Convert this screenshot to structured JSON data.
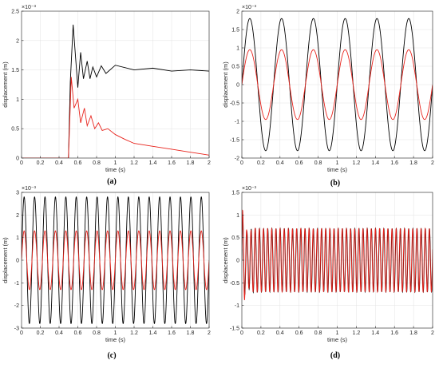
{
  "chart_data": [
    {
      "panel": "(a)",
      "type": "line",
      "xlabel": "time (s)",
      "ylabel": "displacement (m)",
      "exponent_label": "×10⁻³",
      "xlim": [
        0,
        2
      ],
      "ylim": [
        0,
        2.5
      ],
      "xticks": [
        "0",
        "0.2",
        "0.4",
        "0.6",
        "0.8",
        "1",
        "1.2",
        "1.4",
        "1.6",
        "1.8",
        "2"
      ],
      "yticks": [
        "0",
        "0.5",
        "1",
        "1.5",
        "2",
        "2.5"
      ],
      "grid": true,
      "series": [
        {
          "color": "#000000",
          "x": [
            0,
            0.5,
            0.52,
            0.55,
            0.6,
            0.63,
            0.66,
            0.7,
            0.73,
            0.76,
            0.8,
            0.85,
            0.9,
            1.0,
            1.2,
            1.4,
            1.6,
            1.8,
            2.0
          ],
          "y": [
            0,
            0,
            1.3,
            2.27,
            1.2,
            1.8,
            1.35,
            1.65,
            1.35,
            1.55,
            1.38,
            1.57,
            1.44,
            1.58,
            1.5,
            1.53,
            1.48,
            1.5,
            1.48
          ]
        },
        {
          "color": "#e8231c",
          "x": [
            0,
            0.5,
            0.53,
            0.56,
            0.6,
            0.63,
            0.67,
            0.7,
            0.74,
            0.78,
            0.82,
            0.86,
            0.92,
            1.0,
            1.1,
            1.2,
            1.4,
            1.6,
            1.8,
            2.0
          ],
          "y": [
            0,
            0,
            1.38,
            0.85,
            1.0,
            0.6,
            0.85,
            0.55,
            0.72,
            0.5,
            0.6,
            0.47,
            0.5,
            0.4,
            0.32,
            0.25,
            0.2,
            0.15,
            0.1,
            0.05
          ]
        }
      ]
    },
    {
      "panel": "(b)",
      "type": "line",
      "xlabel": "time (s)",
      "ylabel": "displacement (m)",
      "exponent_label": "×10⁻³",
      "xlim": [
        0,
        2
      ],
      "ylim": [
        -2,
        2
      ],
      "xticks": [
        "0",
        "0.2",
        "0.4",
        "0.6",
        "0.8",
        "1",
        "1.2",
        "1.4",
        "1.6",
        "1.8",
        "2"
      ],
      "yticks": [
        "-2",
        "-1.5",
        "-1",
        "-0.5",
        "0",
        "0.5",
        "1",
        "1.5",
        "2"
      ],
      "grid": true,
      "series": [
        {
          "color": "#000000",
          "amplitude": 1.8,
          "frequency_hz": 3.0,
          "phase": 0,
          "decay": 0
        },
        {
          "color": "#e8231c",
          "amplitude": 0.95,
          "frequency_hz": 3.0,
          "phase": 0,
          "decay": 0
        }
      ]
    },
    {
      "panel": "(c)",
      "type": "line",
      "xlabel": "time (s)",
      "ylabel": "displacement (m)",
      "exponent_label": "×10⁻³",
      "xlim": [
        0,
        2
      ],
      "ylim": [
        -3,
        3
      ],
      "xticks": [
        "0",
        "0.2",
        "0.4",
        "0.6",
        "0.8",
        "1",
        "1.2",
        "1.4",
        "1.6",
        "1.8",
        "2"
      ],
      "yticks": [
        "-3",
        "-2",
        "-1",
        "0",
        "1",
        "2",
        "3"
      ],
      "grid": true,
      "series": [
        {
          "color": "#000000",
          "amplitude": 2.8,
          "frequency_hz": 9.0,
          "phase": 0,
          "decay": 0
        },
        {
          "color": "#e8231c",
          "amplitude": 1.3,
          "frequency_hz": 9.0,
          "phase": 0,
          "decay": 0
        }
      ]
    },
    {
      "panel": "(d)",
      "type": "line",
      "xlabel": "time (s)",
      "ylabel": "displacement (m)",
      "exponent_label": "×10⁻³",
      "xlim": [
        0,
        2
      ],
      "ylim": [
        -1.5,
        1.5
      ],
      "xticks": [
        "0",
        "0.2",
        "0.4",
        "0.6",
        "0.8",
        "1",
        "1.2",
        "1.4",
        "1.6",
        "1.8",
        "2"
      ],
      "yticks": [
        "-1.5",
        "-1",
        "-0.5",
        "0",
        "0.5",
        "1",
        "1.5"
      ],
      "grid": true,
      "series": [
        {
          "color": "#000000",
          "amplitude": 0.7,
          "frequency_hz": 23.0,
          "phase": 0,
          "transient_amplitude": 0.4,
          "transient_decay": 25
        },
        {
          "color": "#e8231c",
          "amplitude": 0.7,
          "frequency_hz": 23.0,
          "phase": 0.35,
          "transient_amplitude": 0.5,
          "transient_decay": 25
        }
      ]
    }
  ]
}
